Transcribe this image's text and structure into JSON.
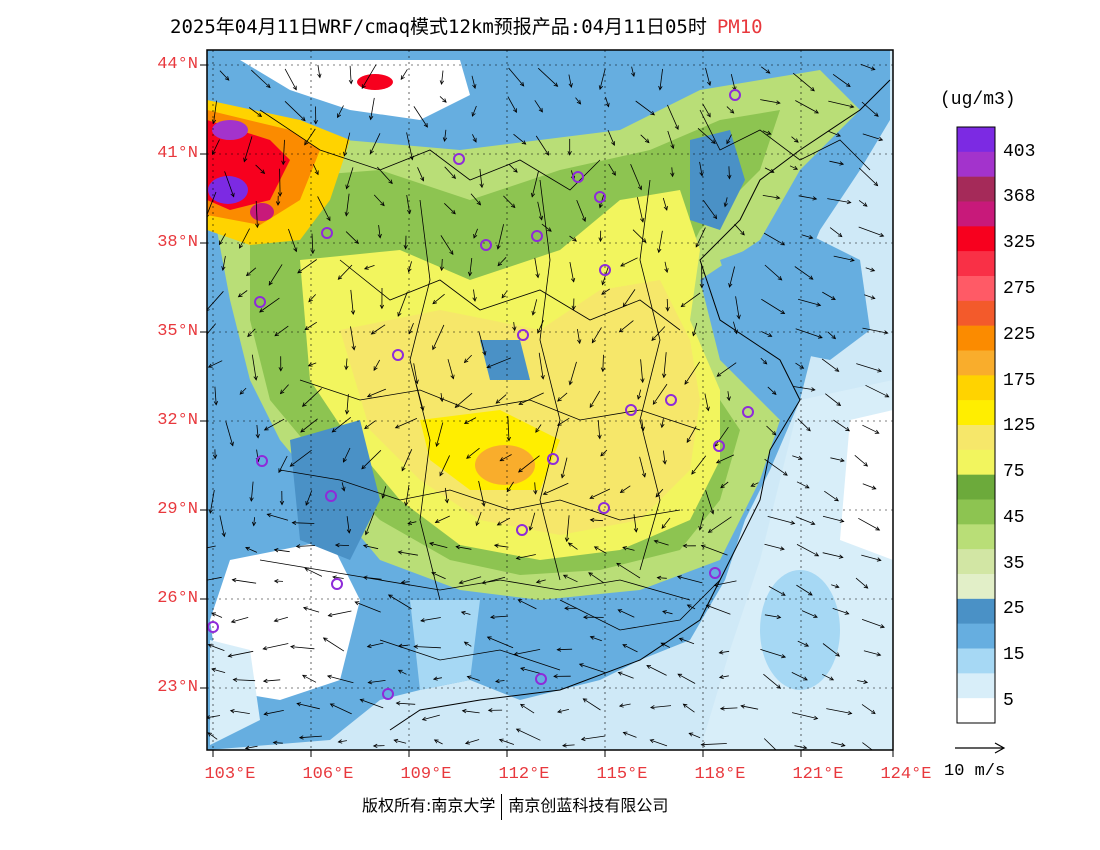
{
  "header": {
    "title": "2025年04月11日WRF/cmaq模式12km预报产品:04月11日05时",
    "variable": "PM10"
  },
  "map": {
    "lat_labels": [
      "44°N",
      "41°N",
      "38°N",
      "35°N",
      "32°N",
      "29°N",
      "26°N",
      "23°N"
    ],
    "lon_labels": [
      "103°E",
      "106°E",
      "109°E",
      "112°E",
      "115°E",
      "118°E",
      "121°E",
      "124°E"
    ],
    "colors": {
      "ocean": "#cfe9f7",
      "clean": "#ffffff",
      "low": "#9fd2f1",
      "mid_blue": "#5fa5d6",
      "light_green": "#d9ebc1",
      "green": "#9ccf67",
      "yellow_green": "#e6ef7b",
      "yellow": "#f5e95a",
      "orange": "#f6a83c",
      "red": "#ec1b3c",
      "purple": "#8e2bd9"
    }
  },
  "colorbar": {
    "units": "(ug/m3)",
    "labels": [
      "403",
      "368",
      "325",
      "275",
      "225",
      "175",
      "125",
      "75",
      "45",
      "35",
      "25",
      "15",
      "5"
    ],
    "colors": [
      "#7c2ae3",
      "#a333cc",
      "#a52a59",
      "#c8197a",
      "#f7001e",
      "#f93046",
      "#ff5a66",
      "#f35a2b",
      "#fb8b00",
      "#f9ad2c",
      "#ffd300",
      "#ffee00",
      "#f6e76a",
      "#f2f55e",
      "#6caa3b",
      "#8dc451",
      "#b9de77",
      "#d2e6a4",
      "#e2efc8",
      "#4a91c6",
      "#66aee0",
      "#a6d8f4",
      "#d8eef9",
      "#ffffff"
    ]
  },
  "vector_legend": {
    "label": "10 m/s"
  },
  "footer": {
    "copyright_a": "版权所有:南京大学",
    "copyright_b": "南京创蓝科技有限公司"
  }
}
